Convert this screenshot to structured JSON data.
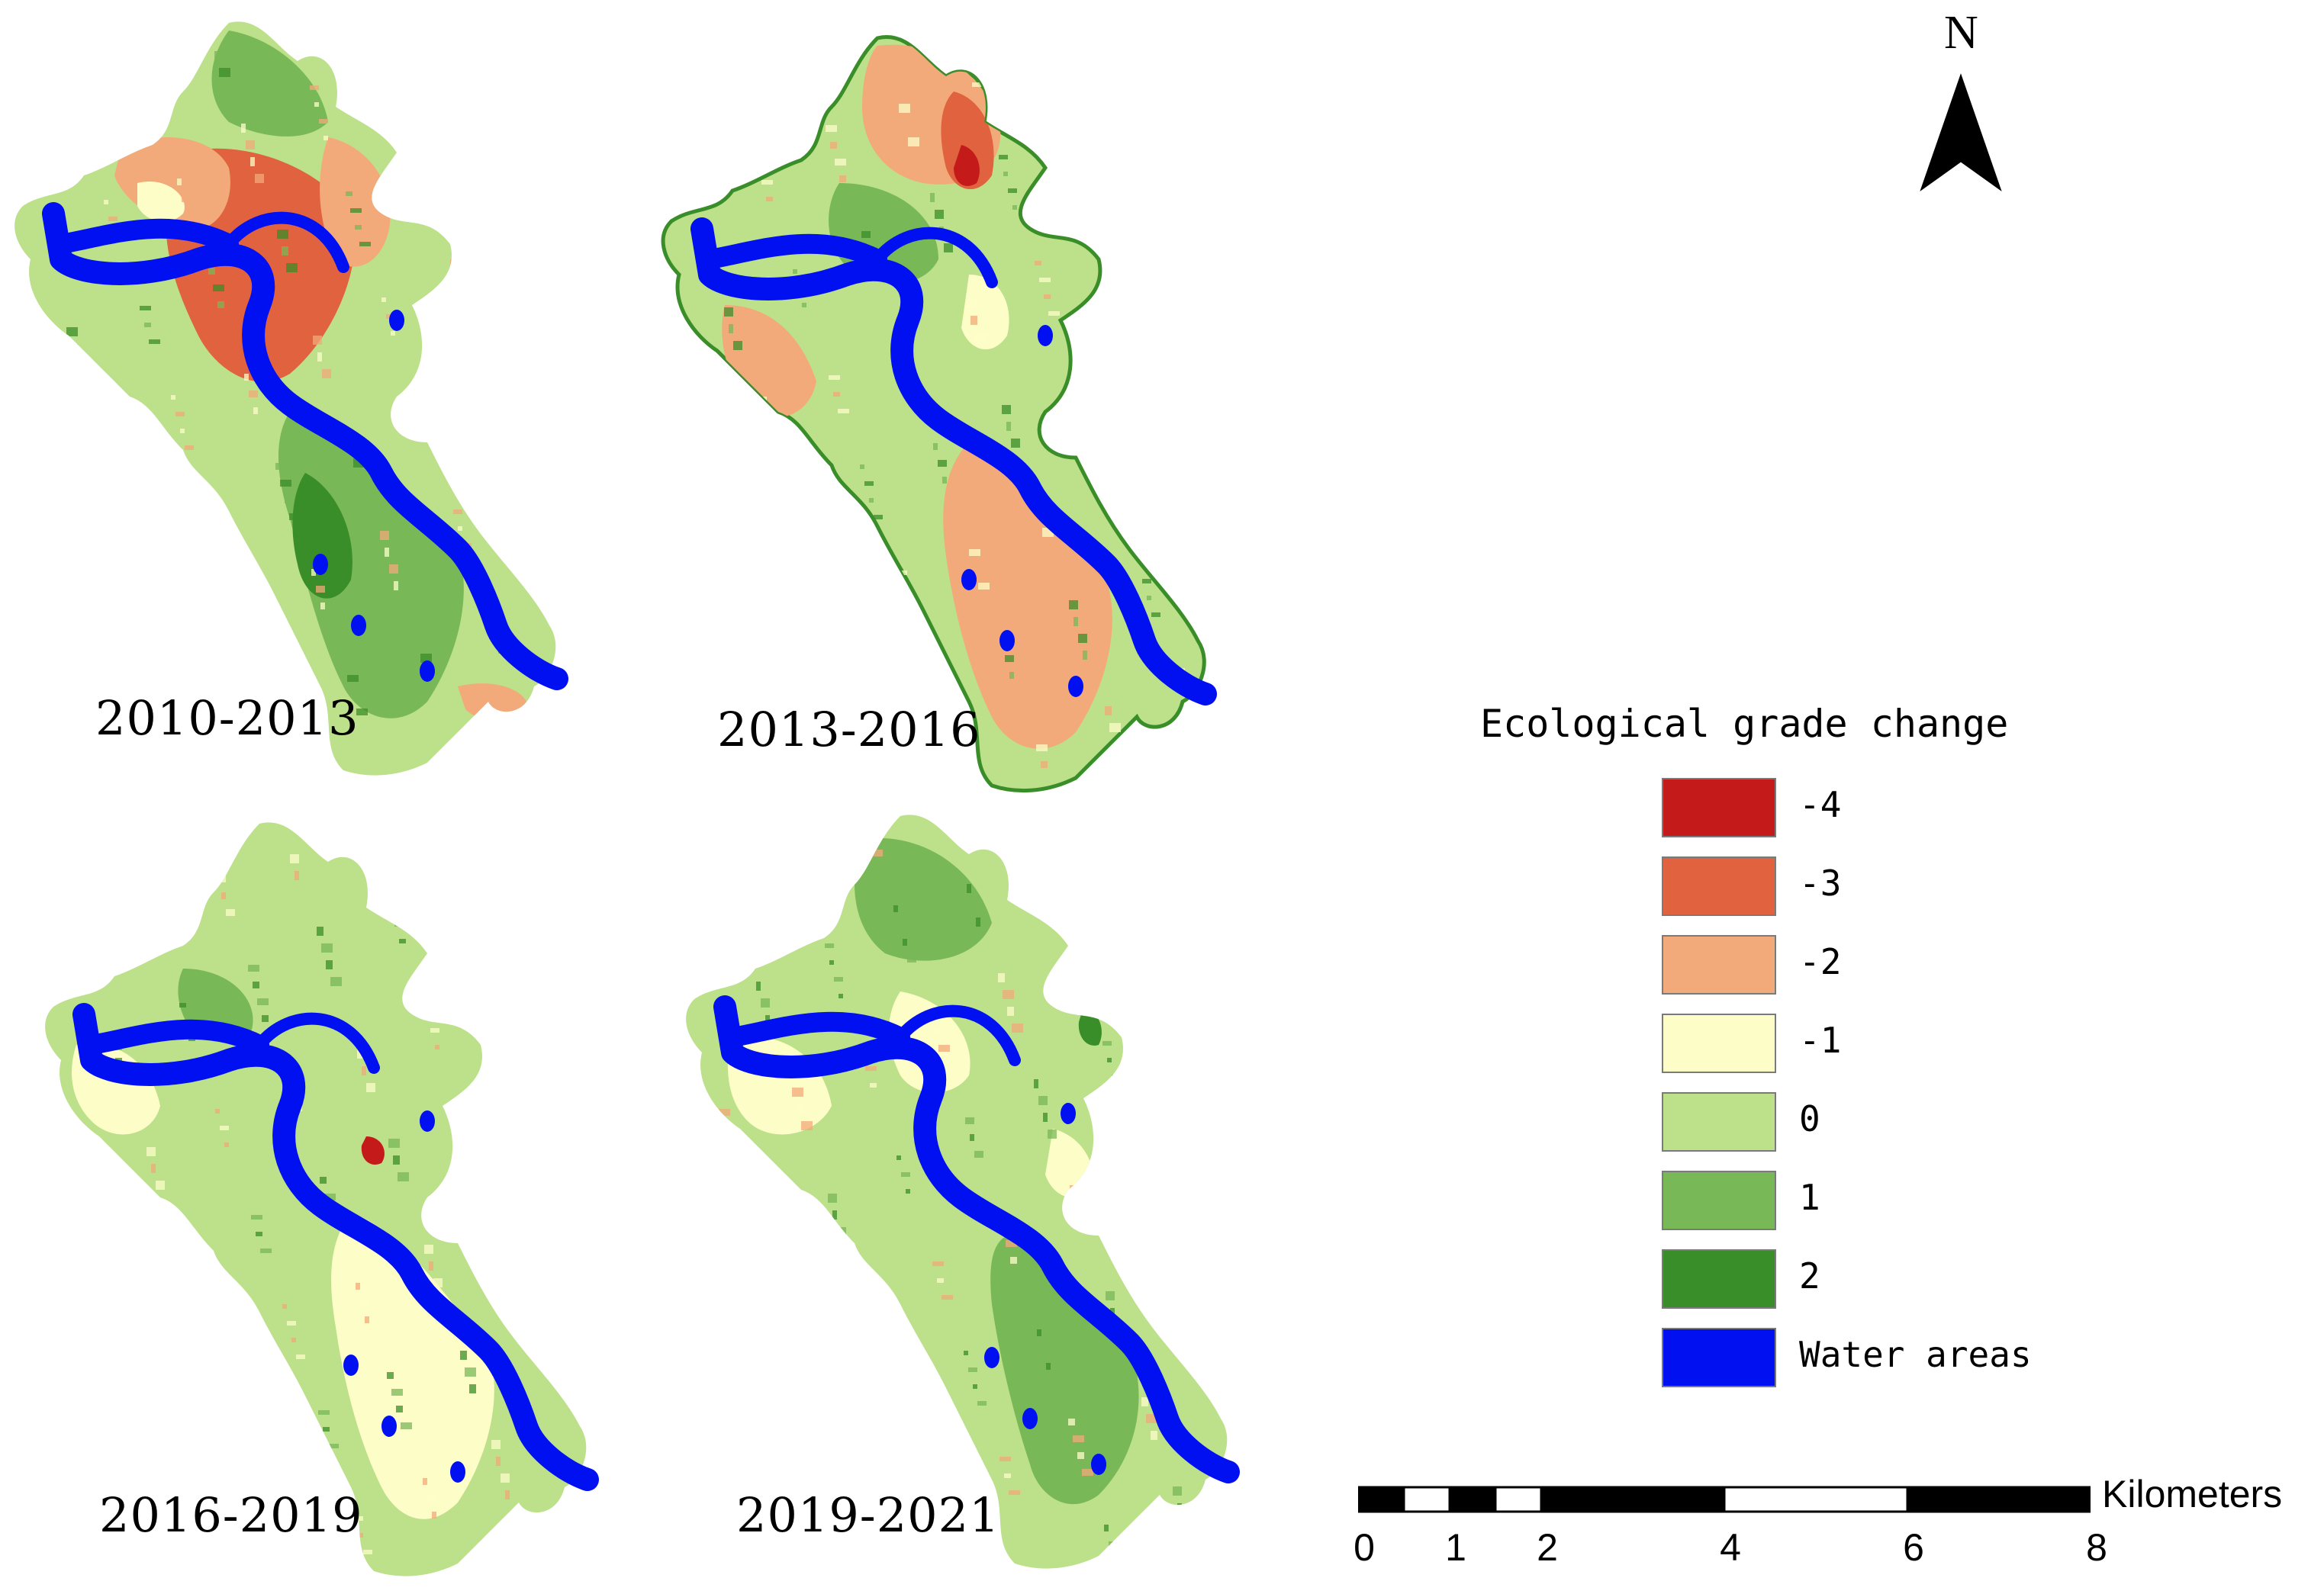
{
  "panels": [
    {
      "label": "2010-2013",
      "scheme": "p1"
    },
    {
      "label": "2013-2016",
      "scheme": "p2"
    },
    {
      "label": "2016-2019",
      "scheme": "p3"
    },
    {
      "label": "2019-2021",
      "scheme": "p4"
    }
  ],
  "north_arrow": {
    "letter": "N"
  },
  "legend": {
    "title": "Ecological grade change",
    "items": [
      {
        "label": "-4",
        "color": "#c41a1a"
      },
      {
        "label": "-3",
        "color": "#e0623f"
      },
      {
        "label": "-2",
        "color": "#f2aa7a"
      },
      {
        "label": "-1",
        "color": "#fdfdc8"
      },
      {
        "label": "0",
        "color": "#bde08a"
      },
      {
        "label": "1",
        "color": "#78b857"
      },
      {
        "label": "2",
        "color": "#3a8e2a"
      },
      {
        "label": "Water areas",
        "color": "#0010f0"
      }
    ]
  },
  "scale_bar": {
    "unit": "Kilometers",
    "ticks": [
      "0",
      "1",
      "2",
      "4",
      "6",
      "8"
    ],
    "tick_values": [
      0,
      1,
      2,
      4,
      6,
      8
    ]
  }
}
